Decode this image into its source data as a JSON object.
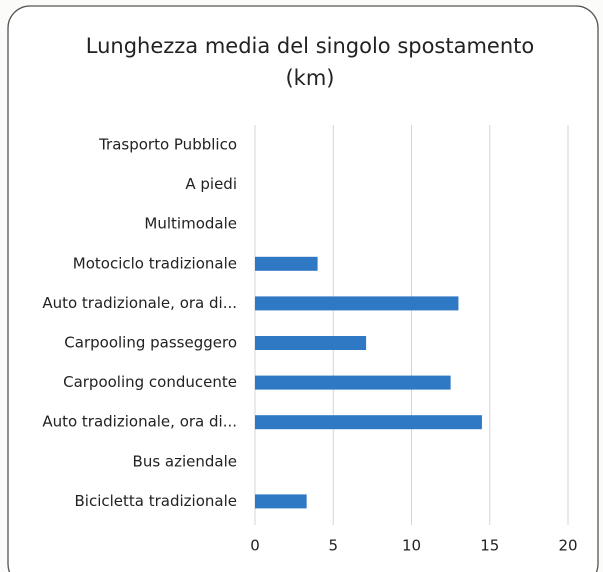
{
  "chart_data": {
    "type": "bar",
    "orientation": "horizontal",
    "title": "Lunghezza media del singolo spostamento (km)",
    "categories": [
      "Trasporto Pubblico",
      "A piedi",
      "Multimodale",
      "Motociclo tradizionale",
      "Auto tradizionale, ora di...",
      "Carpooling passeggero",
      "Carpooling conducente",
      "Auto tradizionale, ora di...",
      "Bus aziendale",
      "Bicicletta tradizionale"
    ],
    "values": [
      null,
      null,
      null,
      4,
      13,
      7.1,
      12.5,
      14.5,
      null,
      3.3
    ],
    "color": "#2f78c4",
    "xlim": [
      0,
      20
    ],
    "xticks": [
      0,
      5,
      10,
      15,
      20
    ],
    "grid": true
  }
}
